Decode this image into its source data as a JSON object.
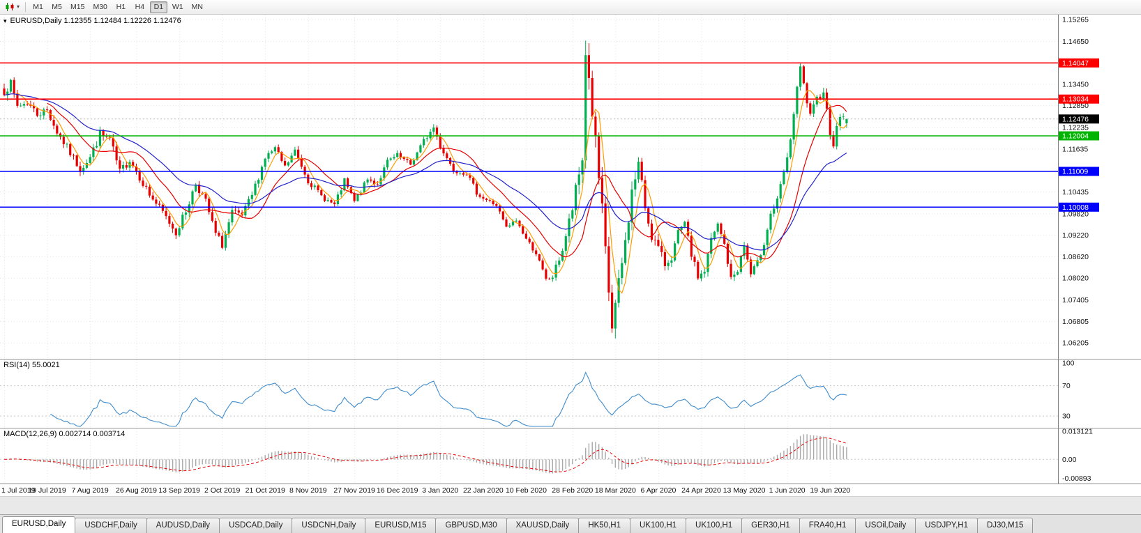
{
  "toolbar": {
    "chart_type_icon": "candlestick-chart",
    "dropdown_icon": "chevron-down",
    "timeframes": [
      "M1",
      "M5",
      "M15",
      "M30",
      "H1",
      "H4",
      "D1",
      "W1",
      "MN"
    ],
    "active_timeframe": "D1"
  },
  "chart": {
    "collapse_icon": "triangle-down",
    "symbol": "EURUSD,Daily",
    "title_line": "EURUSD,Daily 1.12355 1.12484 1.12226 1.12476"
  },
  "chart_data": {
    "type": "candlestick",
    "symbol": "EURUSD",
    "timeframe": "Daily",
    "ohlc_today": {
      "open": 1.12355,
      "high": 1.12484,
      "low": 1.12226,
      "close": 1.12476
    },
    "current_price": {
      "label": "1.12476",
      "color": "#000000"
    },
    "candle_count": 256,
    "seed": 7,
    "last_ohlc": [
      1.12355,
      1.12484,
      1.12226,
      1.12476
    ],
    "price_axis": {
      "min": 1.0576,
      "max": 1.154,
      "labels": [
        "1.15265",
        "1.14650",
        "1.13450",
        "1.12850",
        "1.12235",
        "1.11635",
        "1.10435",
        "1.09820",
        "1.09220",
        "1.08620",
        "1.08020",
        "1.07405",
        "1.06805",
        "1.06205"
      ]
    },
    "close_anchors": [
      [
        0,
        1.133,
        0.0036
      ],
      [
        2,
        1.1344,
        0.0032
      ],
      [
        4,
        1.1284,
        0.0028
      ],
      [
        7,
        1.1294,
        0.0026
      ],
      [
        10,
        1.1262,
        0.0026
      ],
      [
        13,
        1.1272,
        0.0026
      ],
      [
        16,
        1.1212,
        0.0028
      ],
      [
        20,
        1.1152,
        0.0026
      ],
      [
        23,
        1.1108,
        0.0026
      ],
      [
        26,
        1.114,
        0.0028
      ],
      [
        29,
        1.1205,
        0.0032
      ],
      [
        32,
        1.119,
        0.0028
      ],
      [
        35,
        1.1098,
        0.003
      ],
      [
        38,
        1.1135,
        0.0028
      ],
      [
        40,
        1.1102,
        0.0026
      ],
      [
        44,
        1.1036,
        0.0024
      ],
      [
        48,
        1.0986,
        0.0024
      ],
      [
        52,
        1.093,
        0.0026
      ],
      [
        55,
        1.099,
        0.0028
      ],
      [
        58,
        1.1068,
        0.0028
      ],
      [
        61,
        1.1016,
        0.0024
      ],
      [
        64,
        1.0926,
        0.0024
      ],
      [
        66,
        1.0896,
        0.0028
      ],
      [
        69,
        1.0984,
        0.0028
      ],
      [
        72,
        1.0976,
        0.0022
      ],
      [
        75,
        1.1034,
        0.0022
      ],
      [
        79,
        1.114,
        0.0024
      ],
      [
        82,
        1.1164,
        0.0022
      ],
      [
        85,
        1.1112,
        0.002
      ],
      [
        88,
        1.1158,
        0.002
      ],
      [
        92,
        1.1076,
        0.002
      ],
      [
        96,
        1.1032,
        0.0018
      ],
      [
        100,
        1.1006,
        0.0018
      ],
      [
        103,
        1.1074,
        0.0018
      ],
      [
        106,
        1.1016,
        0.0018
      ],
      [
        110,
        1.1078,
        0.0018
      ],
      [
        113,
        1.1066,
        0.0018
      ],
      [
        116,
        1.1128,
        0.0018
      ],
      [
        119,
        1.1144,
        0.002
      ],
      [
        123,
        1.112,
        0.0018
      ],
      [
        127,
        1.1186,
        0.0018
      ],
      [
        130,
        1.1224,
        0.002
      ],
      [
        132,
        1.1172,
        0.002
      ],
      [
        136,
        1.1106,
        0.0018
      ],
      [
        140,
        1.1096,
        0.0016
      ],
      [
        143,
        1.1042,
        0.0016
      ],
      [
        145,
        1.1026,
        0.0016
      ],
      [
        149,
        1.1006,
        0.0016
      ],
      [
        152,
        1.0942,
        0.0016
      ],
      [
        155,
        1.0964,
        0.0016
      ],
      [
        158,
        1.0912,
        0.0016
      ],
      [
        161,
        1.0872,
        0.0016
      ],
      [
        164,
        1.0796,
        0.002
      ],
      [
        166,
        1.0806,
        0.0022
      ],
      [
        169,
        1.0882,
        0.0028
      ],
      [
        172,
        1.0996,
        0.0045
      ],
      [
        174,
        1.109,
        0.0055
      ],
      [
        175,
        1.1135,
        0.006
      ],
      [
        176,
        1.1438,
        0.0085
      ],
      [
        177,
        1.136,
        0.0075
      ],
      [
        179,
        1.1175,
        0.0075
      ],
      [
        181,
        1.098,
        0.0075
      ],
      [
        183,
        1.0762,
        0.0065
      ],
      [
        184,
        1.0664,
        0.006
      ],
      [
        186,
        1.0782,
        0.0055
      ],
      [
        188,
        1.0902,
        0.005
      ],
      [
        190,
        1.1042,
        0.005
      ],
      [
        192,
        1.1124,
        0.0045
      ],
      [
        194,
        1.1002,
        0.0045
      ],
      [
        196,
        1.0922,
        0.0036
      ],
      [
        198,
        1.0886,
        0.0032
      ],
      [
        200,
        1.084,
        0.0028
      ],
      [
        202,
        1.0862,
        0.0028
      ],
      [
        204,
        1.0926,
        0.003
      ],
      [
        206,
        1.0952,
        0.0028
      ],
      [
        208,
        1.0868,
        0.0026
      ],
      [
        210,
        1.0806,
        0.0026
      ],
      [
        212,
        1.0822,
        0.0028
      ],
      [
        214,
        1.0908,
        0.003
      ],
      [
        216,
        1.095,
        0.0026
      ],
      [
        218,
        1.0896,
        0.0026
      ],
      [
        220,
        1.0798,
        0.0026
      ],
      [
        222,
        1.0826,
        0.0022
      ],
      [
        224,
        1.0894,
        0.0022
      ],
      [
        226,
        1.0812,
        0.0022
      ],
      [
        228,
        1.0844,
        0.0022
      ],
      [
        230,
        1.0902,
        0.0022
      ],
      [
        232,
        1.0982,
        0.0026
      ],
      [
        234,
        1.1016,
        0.0026
      ],
      [
        236,
        1.1098,
        0.003
      ],
      [
        237,
        1.113,
        0.003
      ],
      [
        239,
        1.1262,
        0.0032
      ],
      [
        241,
        1.139,
        0.0034
      ],
      [
        242,
        1.134,
        0.0032
      ],
      [
        244,
        1.1252,
        0.003
      ],
      [
        246,
        1.1302,
        0.0028
      ],
      [
        248,
        1.133,
        0.0028
      ],
      [
        250,
        1.1212,
        0.0028
      ],
      [
        251,
        1.118,
        0.0026
      ],
      [
        253,
        1.1258,
        0.0024
      ],
      [
        255,
        1.12476,
        0.0022
      ]
    ],
    "hlines": [
      {
        "price": 1.14047,
        "label": "1.14047",
        "color": "#ff0000"
      },
      {
        "price": 1.13034,
        "label": "1.13034",
        "color": "#ff0000"
      },
      {
        "price": 1.12004,
        "label": "1.12004",
        "color": "#00b400"
      },
      {
        "price": 1.11009,
        "label": "1.11009",
        "color": "#0000ff"
      },
      {
        "price": 1.10008,
        "label": "1.10008",
        "color": "#0000ff"
      }
    ],
    "moving_averages": [
      {
        "name": "ma-fast-orange",
        "period": 5,
        "method": "sma",
        "color": "#ff9c00"
      },
      {
        "name": "ma-mid-red",
        "period": 14,
        "method": "sma",
        "color": "#e60000"
      },
      {
        "name": "ma-slow-blue",
        "period": 34,
        "method": "ema",
        "color": "#2222cc"
      }
    ],
    "colors": {
      "bull": "#00b050",
      "bear": "#e80000",
      "grid": "#e4e4e4",
      "axis_line": "#808080",
      "background": "#ffffff"
    },
    "x_labels": [
      {
        "text": "1 Jul 2019",
        "index": 0
      },
      {
        "text": "19 Jul 2019",
        "index": 13
      },
      {
        "text": "7 Aug 2019",
        "index": 26
      },
      {
        "text": "26 Aug 2019",
        "index": 40
      },
      {
        "text": "13 Sep 2019",
        "index": 53
      },
      {
        "text": "2 Oct 2019",
        "index": 66
      },
      {
        "text": "21 Oct 2019",
        "index": 79
      },
      {
        "text": "8 Nov 2019",
        "index": 92
      },
      {
        "text": "27 Nov 2019",
        "index": 106
      },
      {
        "text": "16 Dec 2019",
        "index": 119
      },
      {
        "text": "3 Jan 2020",
        "index": 132
      },
      {
        "text": "22 Jan 2020",
        "index": 145
      },
      {
        "text": "10 Feb 2020",
        "index": 158
      },
      {
        "text": "28 Feb 2020",
        "index": 172
      },
      {
        "text": "18 Mar 2020",
        "index": 185
      },
      {
        "text": "6 Apr 2020",
        "index": 198
      },
      {
        "text": "24 Apr 2020",
        "index": 211
      },
      {
        "text": "13 May 2020",
        "index": 224
      },
      {
        "text": "1 Jun 2020",
        "index": 237
      },
      {
        "text": "19 Jun 2020",
        "index": 250
      }
    ],
    "rsi": {
      "label": "RSI(14) 55.0021",
      "period": 14,
      "value": 55.0021,
      "levels": [
        100,
        70,
        30
      ],
      "color": "#3f8ccc"
    },
    "macd": {
      "label": "MACD(12,26,9) 0.002714 0.003714",
      "fast": 12,
      "slow": 26,
      "signal": 9,
      "values": [
        0.002714,
        0.003714
      ],
      "axis_labels": [
        {
          "text": "0.013121",
          "value": 0.013121
        },
        {
          "text": "0.00",
          "value": 0
        },
        {
          "text": "-0.00893",
          "value": -0.00893
        }
      ],
      "scale_max": 0.0138,
      "scale_min": -0.0097,
      "histogram_color": "#a8a8a8",
      "signal_color": "#e60000"
    }
  },
  "tabs": {
    "items": [
      "EURUSD,Daily",
      "USDCHF,Daily",
      "AUDUSD,Daily",
      "USDCAD,Daily",
      "USDCNH,Daily",
      "EURUSD,M15",
      "GBPUSD,M30",
      "XAUUSD,Daily",
      "HK50,H1",
      "UK100,H1",
      "UK100,H1",
      "GER30,H1",
      "FRA40,H1",
      "USOil,Daily",
      "USDJPY,H1",
      "DJ30,M15"
    ],
    "active_index": 0
  }
}
